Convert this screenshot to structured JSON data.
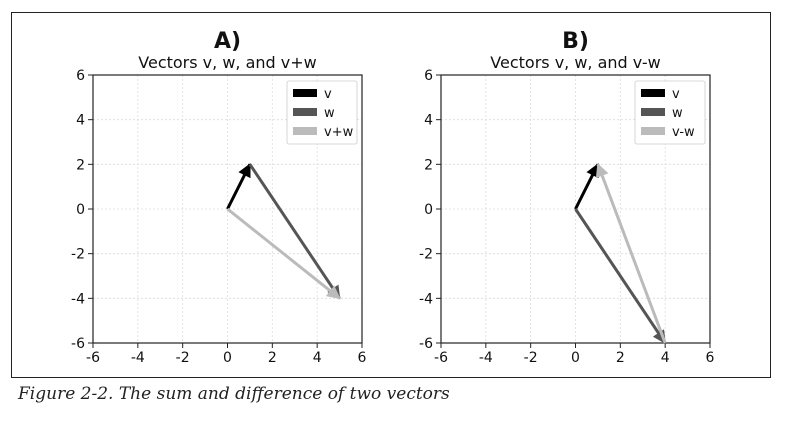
{
  "chart_data": [
    {
      "type": "vector",
      "panel_label": "A)",
      "title": "Vectors v, w, and v+w",
      "xlim": [
        -6,
        6
      ],
      "ylim": [
        -6,
        6
      ],
      "xticks": [
        -6,
        -4,
        -2,
        0,
        2,
        4,
        6
      ],
      "yticks": [
        -6,
        -4,
        -2,
        0,
        2,
        4,
        6
      ],
      "grid": true,
      "legend_position": "top-right",
      "series": [
        {
          "name": "v",
          "color": "#000000",
          "start": [
            0,
            0
          ],
          "end": [
            1,
            2
          ]
        },
        {
          "name": "w",
          "color": "#555555",
          "start": [
            1,
            2
          ],
          "end": [
            5,
            -4
          ]
        },
        {
          "name": "v+w",
          "color": "#bbbbbb",
          "start": [
            0,
            0
          ],
          "end": [
            5,
            -4
          ]
        }
      ]
    },
    {
      "type": "vector",
      "panel_label": "B)",
      "title": "Vectors v, w, and v-w",
      "xlim": [
        -6,
        6
      ],
      "ylim": [
        -6,
        6
      ],
      "xticks": [
        -6,
        -4,
        -2,
        0,
        2,
        4,
        6
      ],
      "yticks": [
        -6,
        -4,
        -2,
        0,
        2,
        4,
        6
      ],
      "grid": true,
      "legend_position": "top-right",
      "series": [
        {
          "name": "v",
          "color": "#000000",
          "start": [
            0,
            0
          ],
          "end": [
            1,
            2
          ]
        },
        {
          "name": "w",
          "color": "#555555",
          "start": [
            0,
            0
          ],
          "end": [
            4,
            -6
          ]
        },
        {
          "name": "v-w",
          "color": "#bbbbbb",
          "start": [
            4,
            -6
          ],
          "end": [
            1,
            2
          ]
        }
      ]
    }
  ],
  "caption": "Figure 2-2. The sum and difference of two vectors"
}
